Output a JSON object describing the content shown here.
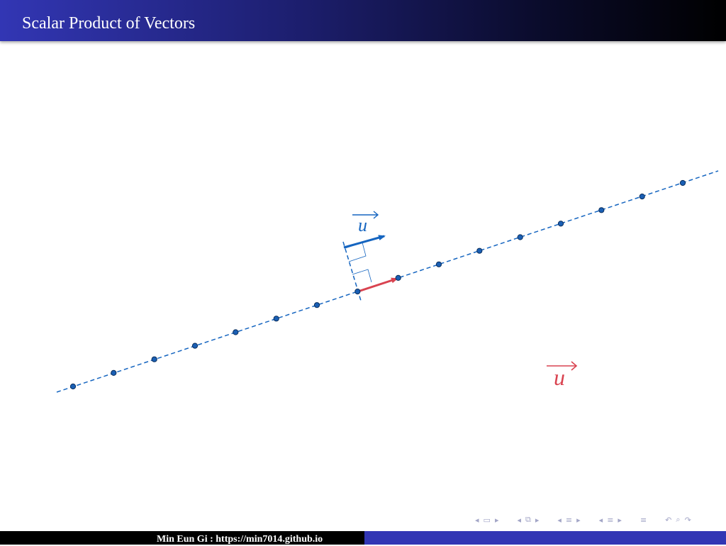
{
  "slide": {
    "title": "Scalar Product of Vectors",
    "footer_author": "Min Eun Gi : https://min7014.github.io"
  },
  "diagram": {
    "colors": {
      "line": "#1565c0",
      "point_fill": "#1a5fb4",
      "blue_vector": "#1565c0",
      "red_vector": "#d94350",
      "title_bar": "#1d1f70",
      "footer_accent": "#3236b4"
    },
    "blue_label": "u",
    "red_label": "u",
    "point_count": 16
  },
  "nav": {
    "icons": [
      "nav-left-arrow",
      "frame-icon",
      "nav-right-arrow",
      "nav-left-arrow",
      "subsection-icon",
      "nav-right-arrow",
      "nav-left-arrow",
      "section-icon",
      "nav-right-arrow",
      "nav-left-arrow",
      "section-icon",
      "nav-right-arrow",
      "align-icon",
      "undo-icon",
      "search-icon",
      "redo-icon"
    ]
  }
}
